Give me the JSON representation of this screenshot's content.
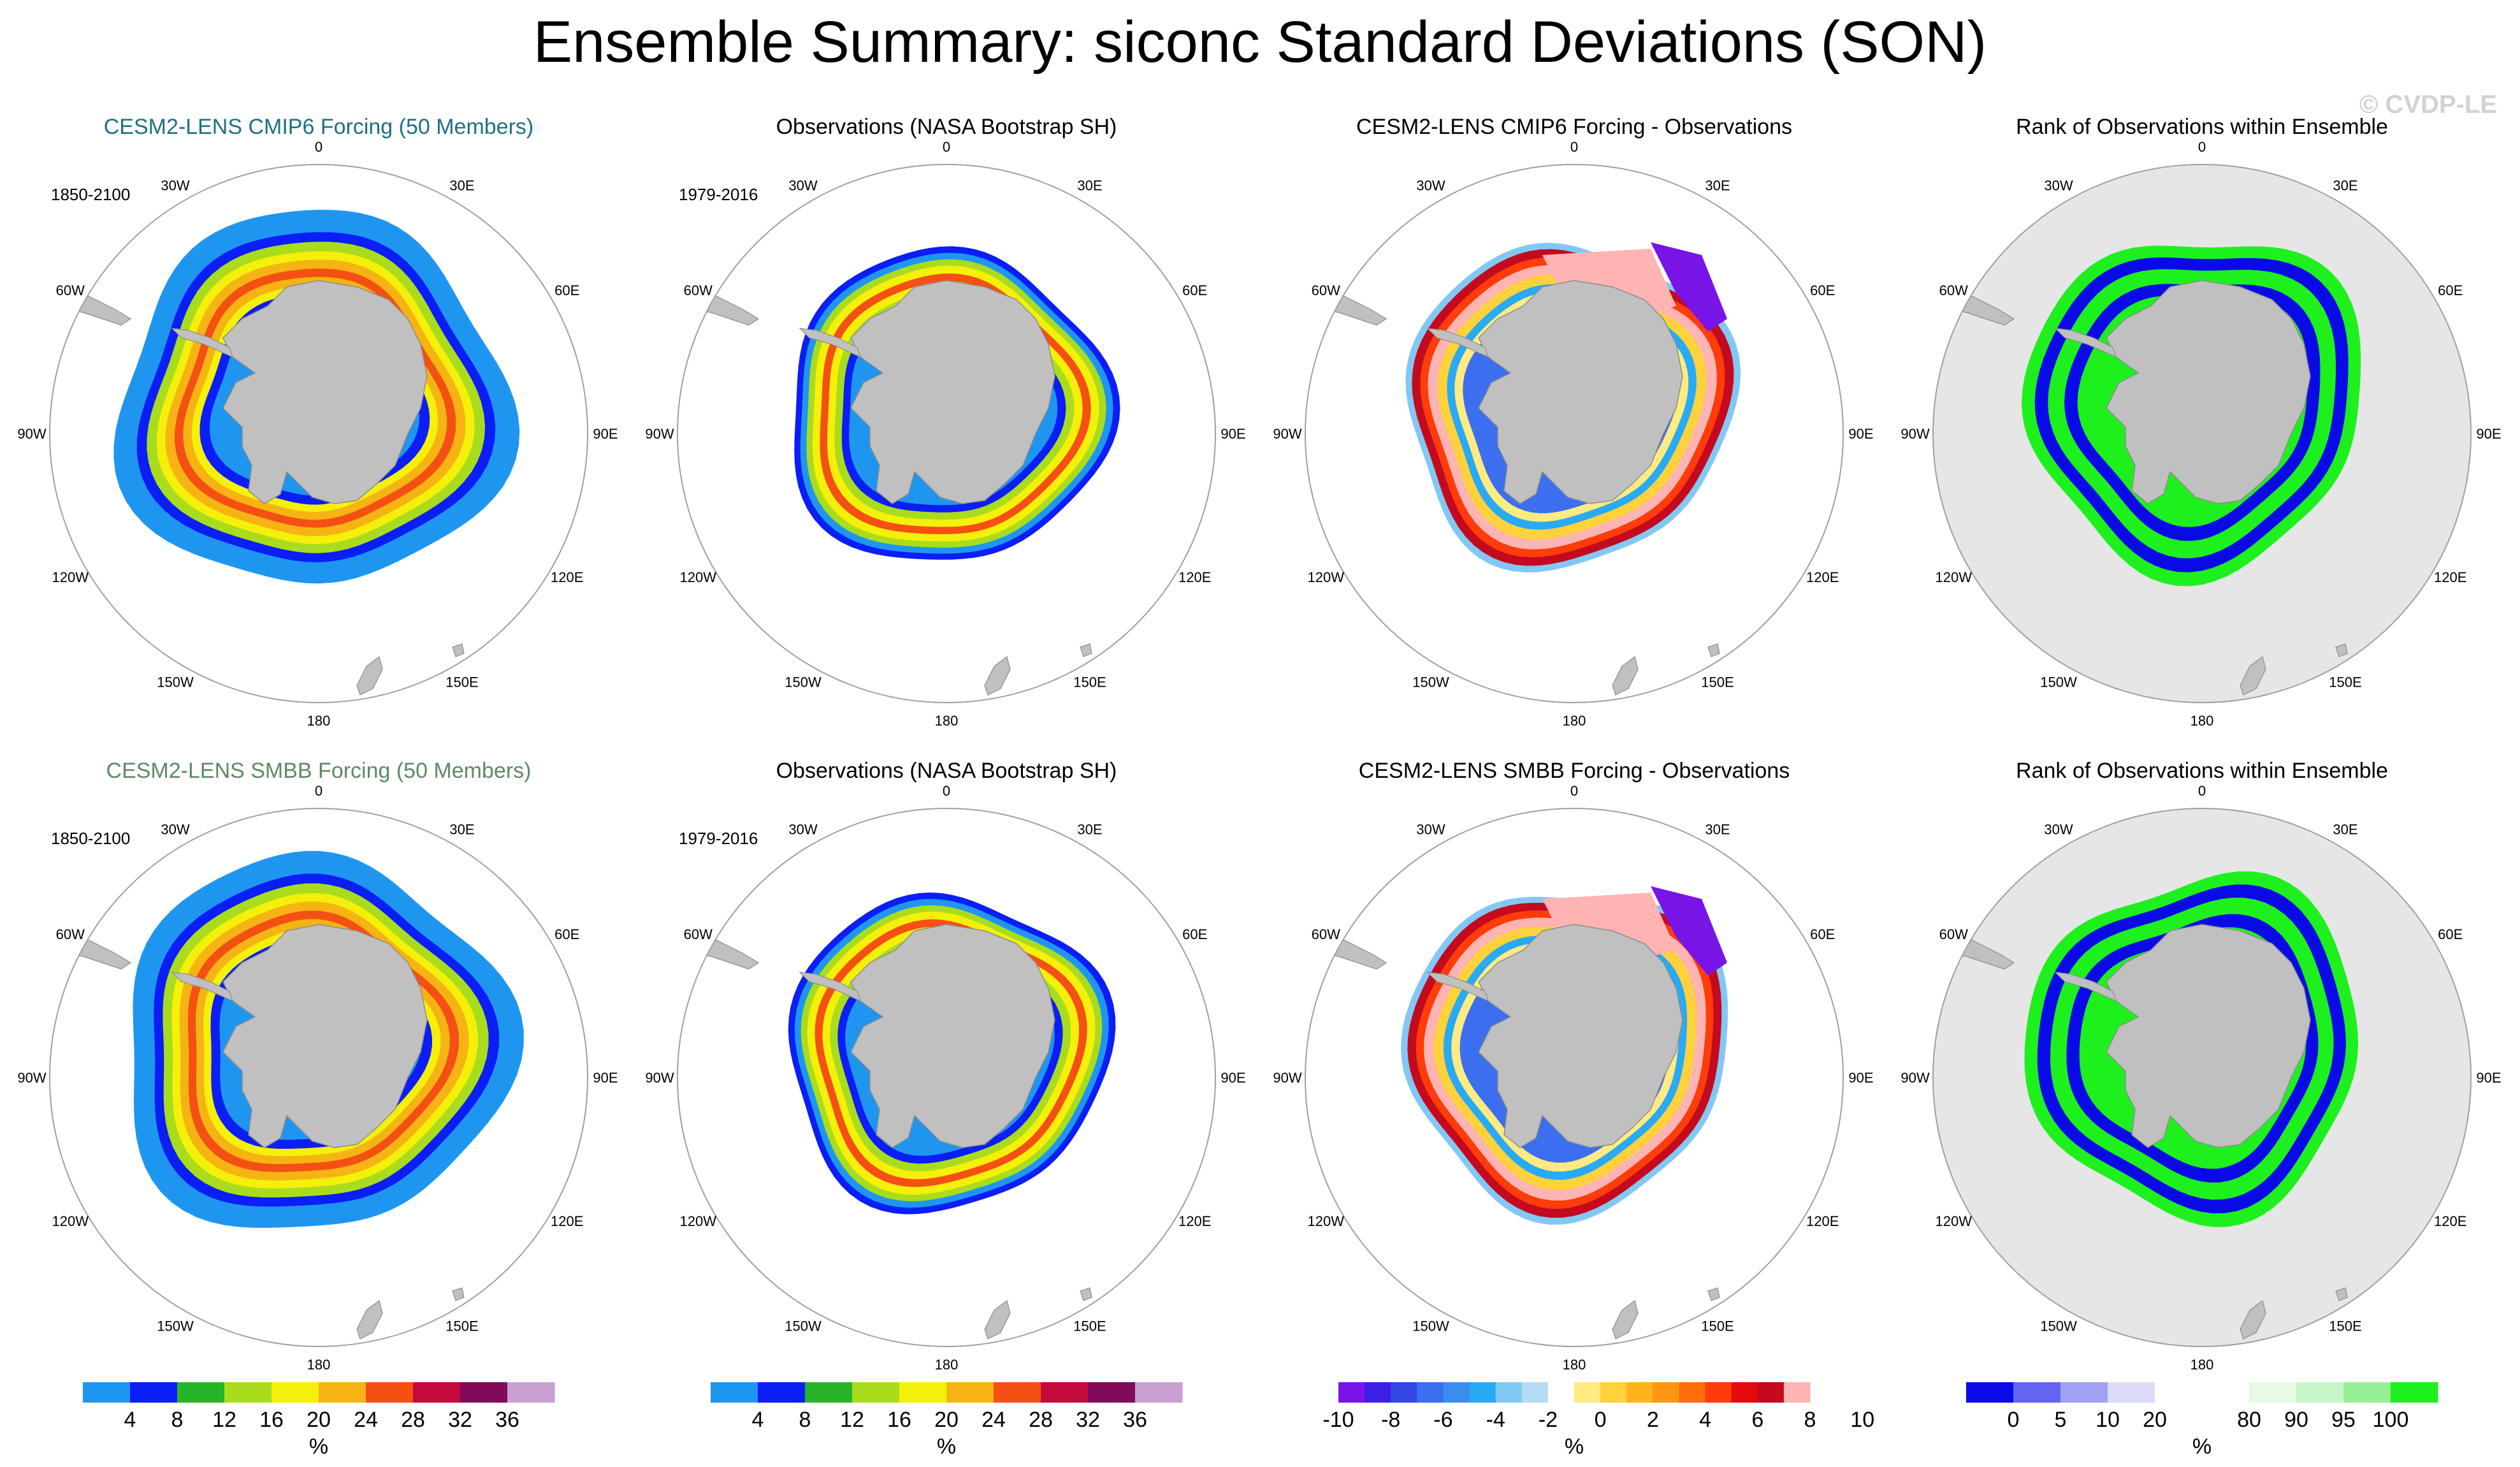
{
  "title": "Ensemble Summary: siconc Standard Deviations (SON)",
  "watermark": "© CVDP-LE",
  "colors": {
    "cmip6_title": "#1f6f84",
    "smbb_title": "#5d8a64",
    "obs_title": "#000000",
    "land": "#c0c0c0",
    "rank_bg": "#e6e6e6"
  },
  "longitude_labels": [
    "0",
    "30E",
    "60E",
    "90E",
    "120E",
    "150E",
    "180",
    "150W",
    "120W",
    "90W",
    "60W",
    "30W"
  ],
  "rows": [
    {
      "panels": [
        {
          "title": "CESM2-LENS CMIP6 Forcing (50 Members)",
          "period": "1850-2100",
          "kind": "model"
        },
        {
          "title": "Observations (NASA Bootstrap SH)",
          "period": "1979-2016",
          "kind": "obs"
        },
        {
          "title": "CESM2-LENS CMIP6 Forcing - Observations",
          "period": "",
          "kind": "diff"
        },
        {
          "title": "Rank of Observations within Ensemble",
          "period": "",
          "kind": "rank"
        }
      ]
    },
    {
      "panels": [
        {
          "title": "CESM2-LENS SMBB Forcing (50 Members)",
          "period": "1850-2100",
          "kind": "model"
        },
        {
          "title": "Observations (NASA Bootstrap SH)",
          "period": "1979-2016",
          "kind": "obs"
        },
        {
          "title": "CESM2-LENS SMBB Forcing - Observations",
          "period": "",
          "kind": "diff"
        },
        {
          "title": "Rank of Observations within Ensemble",
          "period": "",
          "kind": "rank"
        }
      ]
    }
  ],
  "chart_data": {
    "type": "heatmap",
    "projection": "south polar stereographic",
    "variable": "siconc",
    "season": "SON",
    "colorbars": [
      {
        "name": "std",
        "unit": "%",
        "colors": [
          "#1e96f0",
          "#0a1ef5",
          "#28b428",
          "#aadc1e",
          "#f5f00a",
          "#f5b414",
          "#f55014",
          "#c30a3c",
          "#820a5a",
          "#c8a0d2"
        ],
        "tick_labels": [
          "4",
          "8",
          "12",
          "16",
          "20",
          "24",
          "28",
          "32",
          "36"
        ]
      },
      {
        "name": "std",
        "unit": "%",
        "colors": [
          "#1e96f0",
          "#0a1ef5",
          "#28b428",
          "#aadc1e",
          "#f5f00a",
          "#f5b414",
          "#f55014",
          "#c30a3c",
          "#820a5a",
          "#c8a0d2"
        ],
        "tick_labels": [
          "4",
          "8",
          "12",
          "16",
          "20",
          "24",
          "28",
          "32",
          "36"
        ]
      },
      {
        "name": "difference",
        "unit": "%",
        "colors": [
          "#7814e6",
          "#3c1ee6",
          "#3246e6",
          "#3c6ef0",
          "#3c8cf0",
          "#28aaf5",
          "#82c8f5",
          "#b4dcf5",
          "#ffffff",
          "#ffeb82",
          "#ffd23c",
          "#ffb41e",
          "#ff9614",
          "#ff6e0a",
          "#ff3c0a",
          "#e60a0a",
          "#c30a1e",
          "#ffb4b4"
        ],
        "tick_labels": [
          "-10",
          "-8",
          "-6",
          "-4",
          "-2",
          "0",
          "2",
          "4",
          "6",
          "8",
          "10"
        ]
      },
      {
        "name": "rank",
        "unit": "%",
        "colors": [
          "#0a0ae6",
          "#6464f0",
          "#a0a0f5",
          "#dcdcf8",
          "#ffffff",
          "#ffffff",
          "#e6fae6",
          "#c8f5c8",
          "#96f096",
          "#1ef01e"
        ],
        "tick_labels": [
          "0",
          "5",
          "10",
          "20",
          "80",
          "90",
          "95",
          "100"
        ]
      }
    ]
  }
}
